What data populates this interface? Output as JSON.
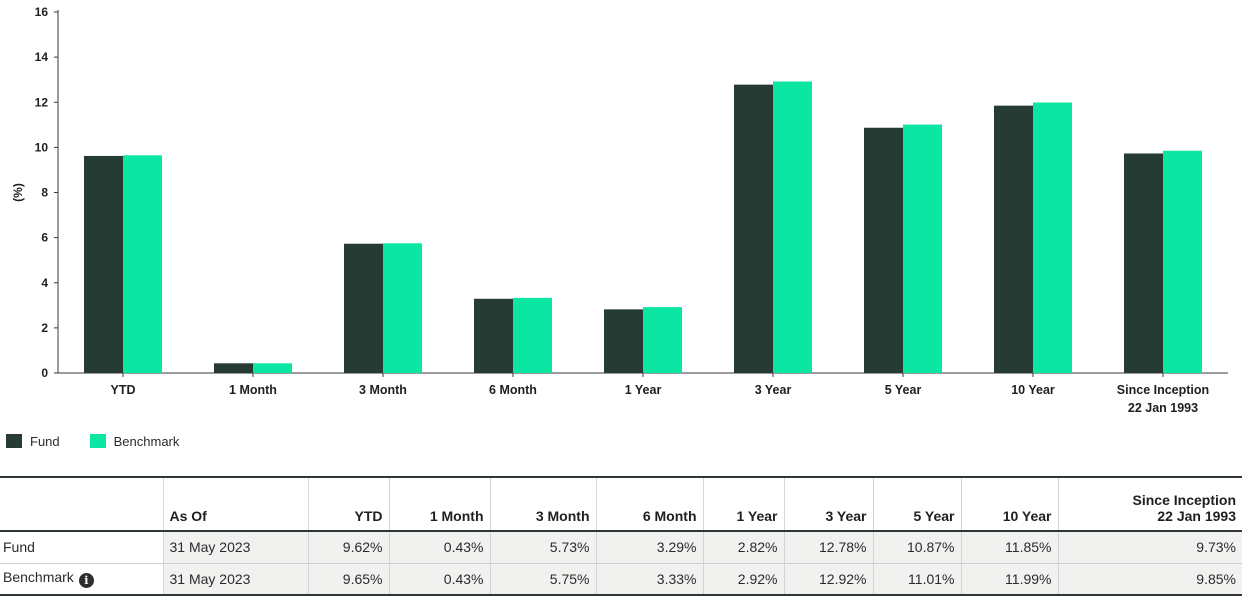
{
  "chart_data": {
    "type": "bar",
    "ylabel": "(%)",
    "ylim": [
      0,
      16
    ],
    "yticks": [
      0,
      2,
      4,
      6,
      8,
      10,
      12,
      14,
      16
    ],
    "categories": [
      [
        "YTD"
      ],
      [
        "1 Month"
      ],
      [
        "3 Month"
      ],
      [
        "6 Month"
      ],
      [
        "1 Year"
      ],
      [
        "3 Year"
      ],
      [
        "5 Year"
      ],
      [
        "10 Year"
      ],
      [
        "Since Inception",
        "22 Jan 1993"
      ]
    ],
    "series": [
      {
        "name": "Fund",
        "color": "#253b33",
        "values": [
          9.62,
          0.43,
          5.73,
          3.29,
          2.82,
          12.78,
          10.87,
          11.85,
          9.73
        ]
      },
      {
        "name": "Benchmark",
        "color": "#0be6a3",
        "values": [
          9.65,
          0.43,
          5.75,
          3.33,
          2.92,
          12.92,
          11.01,
          11.99,
          9.85
        ]
      }
    ],
    "legend": "bottom-left",
    "grid": false
  },
  "table": {
    "headers": {
      "as_of": "As Of",
      "ytd": "YTD",
      "m1": "1 Month",
      "m3": "3 Month",
      "m6": "6 Month",
      "y1": "1 Year",
      "y3": "3 Year",
      "y5": "5 Year",
      "y10": "10 Year",
      "inception_line1": "Since Inception",
      "inception_line2": "22 Jan 1993"
    },
    "rows": [
      {
        "name": "Fund",
        "as_of": "31 May 2023",
        "ytd": "9.62%",
        "m1": "0.43%",
        "m3": "5.73%",
        "m6": "3.29%",
        "y1": "2.82%",
        "y3": "12.78%",
        "y5": "10.87%",
        "y10": "11.85%",
        "inception": "9.73%"
      },
      {
        "name": "Benchmark",
        "info_icon": "info-icon",
        "as_of": "31 May 2023",
        "ytd": "9.65%",
        "m1": "0.43%",
        "m3": "5.75%",
        "m6": "3.33%",
        "y1": "2.92%",
        "y3": "12.92%",
        "y5": "11.01%",
        "y10": "11.99%",
        "inception": "9.85%"
      }
    ]
  }
}
